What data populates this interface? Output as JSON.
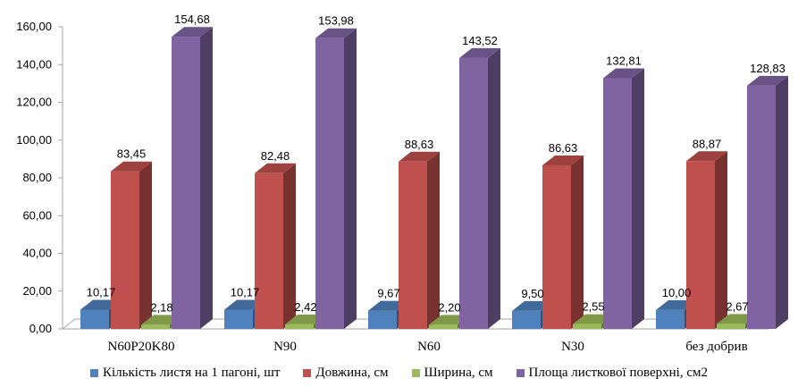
{
  "chart_data": {
    "type": "bar",
    "three_d": true,
    "categories": [
      "N60P20K80",
      "N90",
      "N60",
      "N30",
      "без добрив"
    ],
    "series": [
      {
        "name": "Кількість листя на 1 пагоні, шт",
        "color": "#4F81BD",
        "values": [
          10.17,
          10.17,
          9.67,
          9.5,
          10.0
        ],
        "labels": [
          "10,17",
          "10,17",
          "9,67",
          "9,50",
          "10,00"
        ]
      },
      {
        "name": "Довжина, см",
        "color": "#C0504D",
        "values": [
          83.45,
          82.48,
          88.63,
          86.63,
          88.87
        ],
        "labels": [
          "83,45",
          "82,48",
          "88,63",
          "86,63",
          "88,87"
        ]
      },
      {
        "name": "Ширина, см",
        "color": "#9BBB59",
        "values": [
          2.18,
          2.42,
          2.2,
          2.55,
          2.67
        ],
        "labels": [
          "2,18",
          "2,42",
          "2,20",
          "2,55",
          "2,67"
        ]
      },
      {
        "name": "Площа листкової поверхні, см2",
        "color": "#8064A2",
        "values": [
          154.68,
          153.98,
          143.52,
          132.81,
          128.83
        ],
        "labels": [
          "154,68",
          "153,98",
          "143,52",
          "132,81",
          "128,83"
        ]
      }
    ],
    "ylim": [
      0,
      160
    ],
    "yticks": [
      "0,00",
      "20,00",
      "40,00",
      "60,00",
      "80,00",
      "100,00",
      "120,00",
      "140,00",
      "160,00"
    ],
    "title": "",
    "xlabel": "",
    "ylabel": "",
    "grid": false,
    "legend": "bottom"
  }
}
